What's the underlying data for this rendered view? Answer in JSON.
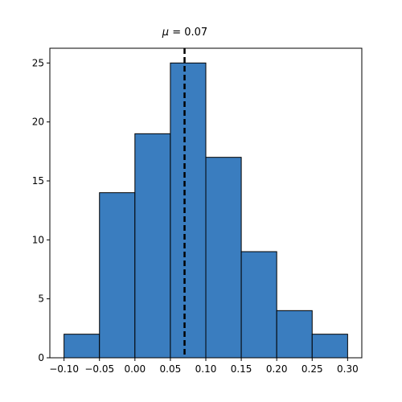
{
  "chart_data": {
    "type": "bar",
    "title": "μ = 0.07",
    "title_symbol": "μ",
    "title_rest": " = 0.07",
    "xlabel": "",
    "ylabel": "",
    "bin_edges": [
      -0.1,
      -0.05,
      0.0,
      0.05,
      0.1,
      0.15,
      0.2,
      0.25,
      0.3
    ],
    "values": [
      2,
      14,
      19,
      25,
      17,
      9,
      4,
      2
    ],
    "mean_line": 0.07,
    "xlim": [
      -0.12,
      0.32
    ],
    "ylim": [
      0,
      26.25
    ],
    "xticks": [
      -0.1,
      -0.05,
      0.0,
      0.05,
      0.1,
      0.15,
      0.2,
      0.25,
      0.3
    ],
    "xtick_labels": [
      "−0.10",
      "−0.05",
      "0.00",
      "0.05",
      "0.10",
      "0.15",
      "0.20",
      "0.25",
      "0.30"
    ],
    "yticks": [
      0,
      5,
      10,
      15,
      20,
      25
    ],
    "ytick_labels": [
      "0",
      "5",
      "10",
      "15",
      "20",
      "25"
    ],
    "grid": false,
    "legend": "none",
    "colors": {
      "bar_fill": "#3a7dbf",
      "bar_edge": "#000000",
      "mean_line": "#000000"
    }
  }
}
